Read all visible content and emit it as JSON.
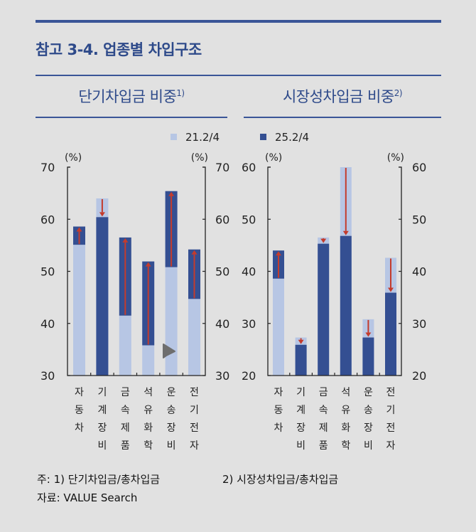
{
  "title": "참고 3-4. 업종별 차입구조",
  "colors": {
    "accent": "#3a5597",
    "light_bar": "#b7c6e4",
    "dark_bar": "#344f92",
    "arrow": "#c43b2c"
  },
  "legend": [
    {
      "label": "21.2/4",
      "color": "#b7c6e4"
    },
    {
      "label": "25.2/4",
      "color": "#344f92"
    }
  ],
  "notes": {
    "line1_a": "주: 1) 단기차입금/총차입금",
    "line1_b": "2) 시장성차입금/총차입금",
    "line2": "자료: VALUE Search"
  },
  "chart_data": [
    {
      "type": "bar",
      "title": "단기차입금 비중",
      "title_sup": "1)",
      "unit": "(%)",
      "categories": [
        "자동차",
        "기계장비",
        "금속제품",
        "석유화학",
        "운송장비",
        "전기전자"
      ],
      "series": [
        {
          "name": "21.2/4",
          "values": [
            55.1,
            64.0,
            41.5,
            35.8,
            50.8,
            44.7
          ]
        },
        {
          "name": "25.2/4",
          "values": [
            58.6,
            60.4,
            56.5,
            51.9,
            65.4,
            54.2
          ]
        }
      ],
      "ylim": [
        30,
        70
      ],
      "yticks": [
        30,
        40,
        50,
        60,
        70
      ],
      "grid": false,
      "legend": "top"
    },
    {
      "type": "bar",
      "title": "시장성차입금 비중",
      "title_sup": "2)",
      "unit": "(%)",
      "categories": [
        "자동차",
        "기계장비",
        "금속제품",
        "석유화학",
        "운송장비",
        "전기전자"
      ],
      "series": [
        {
          "name": "21.2/4",
          "values": [
            38.6,
            27.3,
            46.5,
            60.0,
            30.8,
            42.6
          ]
        },
        {
          "name": "25.2/4",
          "values": [
            44.0,
            25.9,
            45.3,
            46.8,
            27.3,
            35.9
          ]
        }
      ],
      "ylim": [
        20,
        60
      ],
      "yticks": [
        20,
        30,
        40,
        50,
        60
      ],
      "grid": false,
      "legend": "top"
    }
  ]
}
